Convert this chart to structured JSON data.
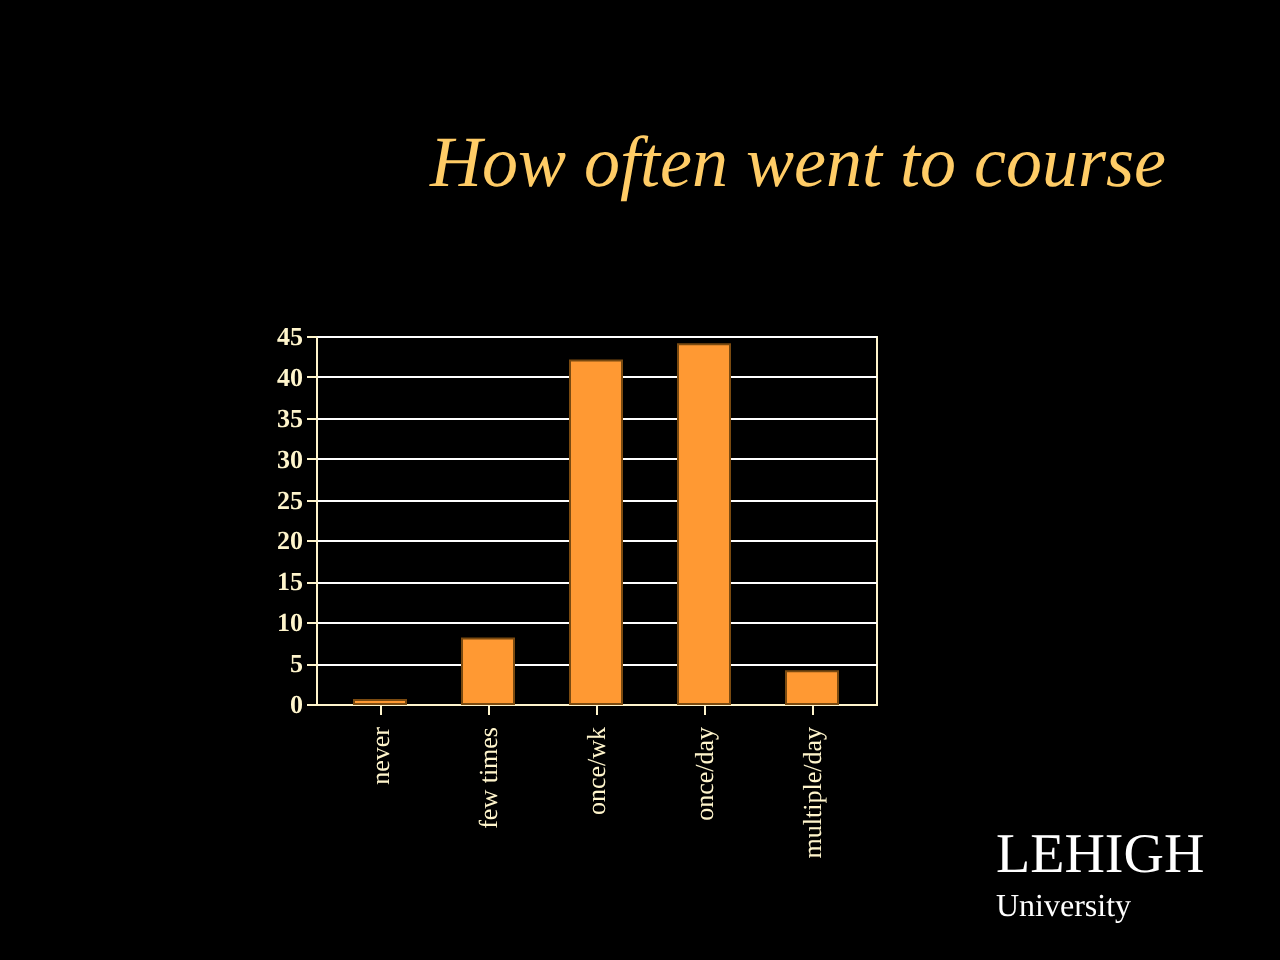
{
  "chart_data": {
    "type": "bar",
    "title": "How often went to course",
    "categories": [
      "never",
      "few times",
      "once/wk",
      "once/day",
      "multiple/day"
    ],
    "values": [
      0.5,
      8,
      42,
      44,
      4
    ],
    "color": "#ff9933",
    "ylim": [
      0,
      45
    ],
    "yticks": [
      0,
      5,
      10,
      15,
      20,
      25,
      30,
      35,
      40,
      45
    ],
    "grid": "y",
    "annotations": [
      "LEHIGH",
      "University"
    ]
  }
}
